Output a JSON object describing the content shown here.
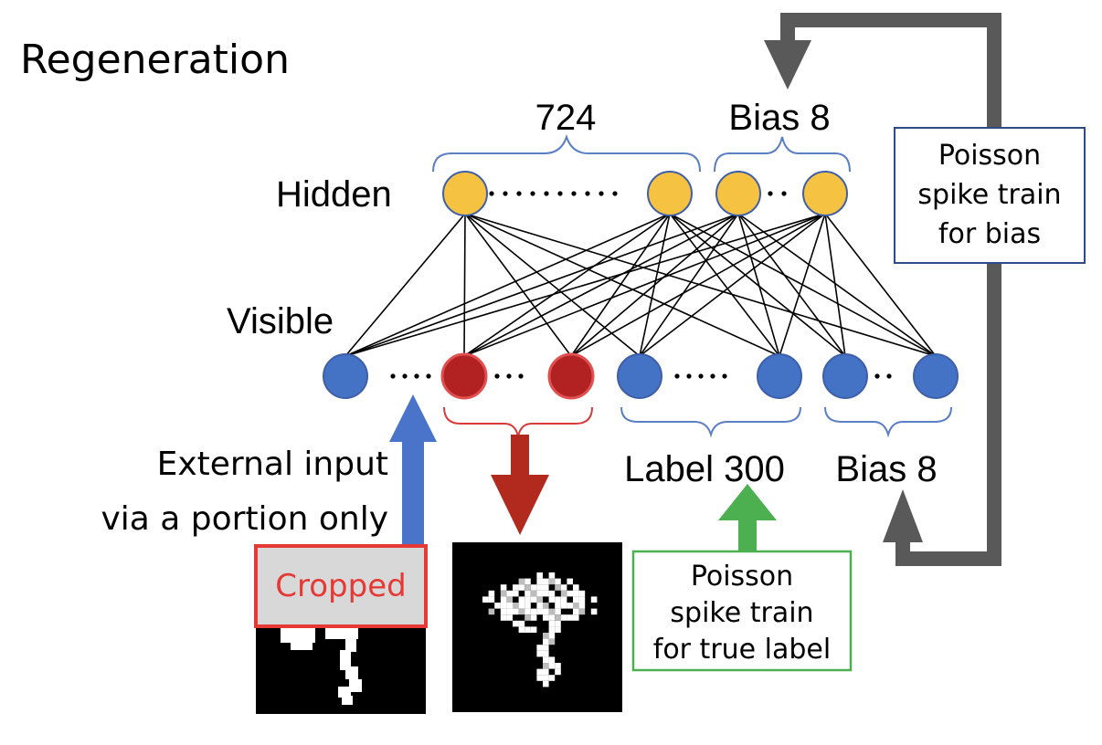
{
  "diagram": {
    "title": "Regeneration",
    "hidden_layer": {
      "label": "Hidden",
      "group_labels": {
        "main": "724",
        "bias": "Bias 8"
      }
    },
    "visible_layer": {
      "label": "Visible",
      "group_labels": {
        "label": "Label 300",
        "bias": "Bias 8"
      }
    },
    "external_input": {
      "line1": "External input",
      "line2": "via a portion only"
    },
    "cropped_label": "Cropped",
    "poisson_label_box": {
      "line1": "Poisson",
      "line2": "spike train",
      "line3": "for true label"
    },
    "poisson_bias_box": {
      "line1": "Poisson",
      "line2": "spike train",
      "line3": "for bias"
    },
    "colors": {
      "hidden_node": "#F5C242",
      "visible_node": "#4472C4",
      "input_node": "#B22222",
      "brace": "#5B7FC4",
      "red_brace": "#D93B3B",
      "blue_arrow": "#4A74C9",
      "red_arrow": "#B22A1E",
      "green_arrow": "#4CAF50",
      "gray_arrow": "#595959",
      "cropped_box": "#E53935"
    }
  }
}
